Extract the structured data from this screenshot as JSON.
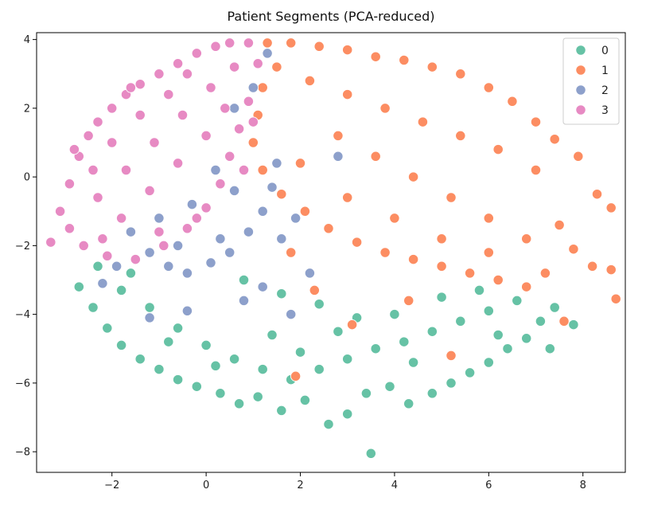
{
  "chart_data": {
    "type": "scatter",
    "title": "Patient Segments (PCA-reduced)",
    "xlabel": "",
    "ylabel": "",
    "xlim": [
      -3.6,
      8.9
    ],
    "ylim": [
      -8.6,
      4.2
    ],
    "xticks": [
      -2,
      0,
      2,
      4,
      6,
      8
    ],
    "yticks": [
      4,
      2,
      0,
      -2,
      -4,
      -6,
      -8
    ],
    "xtick_labels": [
      "−2",
      "0",
      "2",
      "4",
      "6",
      "8"
    ],
    "ytick_labels": [
      "4",
      "2",
      "0",
      "−2",
      "−4",
      "−6",
      "−8"
    ],
    "grid": false,
    "legend_position": "top-right",
    "marker_edge_color": "#ffffff",
    "series": [
      {
        "name": "0",
        "color": "#66c2a5",
        "points": [
          [
            -2.7,
            -3.2
          ],
          [
            -2.4,
            -3.8
          ],
          [
            -2.1,
            -4.4
          ],
          [
            -1.8,
            -4.9
          ],
          [
            -1.4,
            -5.3
          ],
          [
            -1.0,
            -5.6
          ],
          [
            -0.6,
            -5.9
          ],
          [
            -0.2,
            -6.1
          ],
          [
            0.3,
            -6.3
          ],
          [
            0.7,
            -6.6
          ],
          [
            1.1,
            -6.4
          ],
          [
            1.6,
            -6.8
          ],
          [
            2.1,
            -6.5
          ],
          [
            2.6,
            -7.2
          ],
          [
            3.0,
            -6.9
          ],
          [
            3.4,
            -6.3
          ],
          [
            3.5,
            -8.05
          ],
          [
            3.9,
            -6.1
          ],
          [
            4.3,
            -6.6
          ],
          [
            4.8,
            -6.3
          ],
          [
            5.2,
            -6.0
          ],
          [
            5.6,
            -5.7
          ],
          [
            6.0,
            -5.4
          ],
          [
            6.4,
            -5.0
          ],
          [
            6.8,
            -4.7
          ],
          [
            7.1,
            -4.2
          ],
          [
            7.4,
            -3.8
          ],
          [
            7.8,
            -4.3
          ],
          [
            7.3,
            -5.0
          ],
          [
            -1.8,
            -3.3
          ],
          [
            -1.2,
            -3.8
          ],
          [
            -0.6,
            -4.4
          ],
          [
            0.0,
            -4.9
          ],
          [
            0.6,
            -5.3
          ],
          [
            1.2,
            -5.6
          ],
          [
            1.8,
            -5.9
          ],
          [
            2.4,
            -5.6
          ],
          [
            3.0,
            -5.3
          ],
          [
            3.6,
            -5.0
          ],
          [
            4.2,
            -4.8
          ],
          [
            4.8,
            -4.5
          ],
          [
            5.4,
            -4.2
          ],
          [
            6.0,
            -3.9
          ],
          [
            6.6,
            -3.6
          ],
          [
            -2.3,
            -2.6
          ],
          [
            -1.6,
            -2.8
          ],
          [
            0.8,
            -3.0
          ],
          [
            1.6,
            -3.4
          ],
          [
            2.4,
            -3.7
          ],
          [
            3.2,
            -4.1
          ],
          [
            4.0,
            -4.0
          ],
          [
            5.0,
            -3.5
          ],
          [
            5.8,
            -3.3
          ],
          [
            0.2,
            -5.5
          ],
          [
            1.4,
            -4.6
          ],
          [
            2.8,
            -4.5
          ],
          [
            4.4,
            -5.4
          ],
          [
            -0.8,
            -4.8
          ],
          [
            6.2,
            -4.6
          ],
          [
            2.0,
            -5.1
          ]
        ]
      },
      {
        "name": "1",
        "color": "#fc8d62",
        "points": [
          [
            1.3,
            3.9
          ],
          [
            1.8,
            3.9
          ],
          [
            2.4,
            3.8
          ],
          [
            3.0,
            3.7
          ],
          [
            3.6,
            3.5
          ],
          [
            4.2,
            3.4
          ],
          [
            4.8,
            3.2
          ],
          [
            5.4,
            3.0
          ],
          [
            6.0,
            2.6
          ],
          [
            6.5,
            2.2
          ],
          [
            7.0,
            1.6
          ],
          [
            7.4,
            1.1
          ],
          [
            7.9,
            0.6
          ],
          [
            8.3,
            -0.5
          ],
          [
            8.6,
            -0.9
          ],
          [
            8.7,
            -3.55
          ],
          [
            8.6,
            -2.7
          ],
          [
            8.2,
            -2.6
          ],
          [
            7.8,
            -2.1
          ],
          [
            7.5,
            -1.4
          ],
          [
            7.2,
            -2.8
          ],
          [
            6.8,
            -3.2
          ],
          [
            6.2,
            -3.0
          ],
          [
            5.6,
            -2.8
          ],
          [
            5.0,
            -2.6
          ],
          [
            4.4,
            -2.4
          ],
          [
            3.8,
            -2.2
          ],
          [
            3.2,
            -1.9
          ],
          [
            2.6,
            -1.5
          ],
          [
            2.1,
            -1.0
          ],
          [
            1.6,
            -0.5
          ],
          [
            1.2,
            0.2
          ],
          [
            1.0,
            1.0
          ],
          [
            1.1,
            1.8
          ],
          [
            1.2,
            2.6
          ],
          [
            1.5,
            3.2
          ],
          [
            2.2,
            2.8
          ],
          [
            3.0,
            2.4
          ],
          [
            3.8,
            2.0
          ],
          [
            4.6,
            1.6
          ],
          [
            5.4,
            1.2
          ],
          [
            6.2,
            0.8
          ],
          [
            7.0,
            0.2
          ],
          [
            2.8,
            1.2
          ],
          [
            3.6,
            0.6
          ],
          [
            4.4,
            0.0
          ],
          [
            5.2,
            -0.6
          ],
          [
            6.0,
            -1.2
          ],
          [
            6.8,
            -1.8
          ],
          [
            2.0,
            0.4
          ],
          [
            3.0,
            -0.6
          ],
          [
            4.0,
            -1.2
          ],
          [
            5.0,
            -1.8
          ],
          [
            6.0,
            -2.2
          ],
          [
            1.8,
            -2.2
          ],
          [
            2.3,
            -3.3
          ],
          [
            3.1,
            -4.3
          ],
          [
            1.9,
            -5.8
          ],
          [
            5.2,
            -5.2
          ],
          [
            4.3,
            -3.6
          ],
          [
            7.6,
            -4.2
          ]
        ]
      },
      {
        "name": "2",
        "color": "#8da0cb",
        "points": [
          [
            -1.6,
            -1.6
          ],
          [
            -1.2,
            -2.2
          ],
          [
            -0.8,
            -2.6
          ],
          [
            -0.4,
            -2.8
          ],
          [
            0.1,
            -2.5
          ],
          [
            0.5,
            -2.2
          ],
          [
            0.9,
            -1.6
          ],
          [
            1.2,
            -1.0
          ],
          [
            1.4,
            -0.3
          ],
          [
            1.5,
            0.4
          ],
          [
            0.6,
            -0.4
          ],
          [
            0.2,
            0.2
          ],
          [
            -0.3,
            -0.8
          ],
          [
            -1.0,
            -1.2
          ],
          [
            1.3,
            3.6
          ],
          [
            1.0,
            2.6
          ],
          [
            0.6,
            2.0
          ],
          [
            1.6,
            -1.8
          ],
          [
            1.2,
            -3.2
          ],
          [
            0.8,
            -3.6
          ],
          [
            -0.4,
            -3.9
          ],
          [
            -1.2,
            -4.1
          ],
          [
            -2.2,
            -3.1
          ],
          [
            1.8,
            -4.0
          ],
          [
            2.2,
            -2.8
          ],
          [
            2.8,
            0.6
          ],
          [
            0.3,
            -1.8
          ],
          [
            -0.6,
            -2.0
          ],
          [
            1.9,
            -1.2
          ],
          [
            -1.9,
            -2.6
          ]
        ]
      },
      {
        "name": "3",
        "color": "#e78ac3",
        "points": [
          [
            -3.3,
            -1.9
          ],
          [
            -3.1,
            -1.0
          ],
          [
            -2.9,
            -0.2
          ],
          [
            -2.7,
            0.6
          ],
          [
            -2.5,
            1.2
          ],
          [
            -2.3,
            1.6
          ],
          [
            -2.0,
            2.0
          ],
          [
            -1.7,
            2.4
          ],
          [
            -1.4,
            2.7
          ],
          [
            -1.0,
            3.0
          ],
          [
            -0.6,
            3.3
          ],
          [
            -0.2,
            3.6
          ],
          [
            0.2,
            3.8
          ],
          [
            0.5,
            3.9
          ],
          [
            0.9,
            3.9
          ],
          [
            1.1,
            3.3
          ],
          [
            0.9,
            2.2
          ],
          [
            0.7,
            1.4
          ],
          [
            0.5,
            0.6
          ],
          [
            0.3,
            -0.2
          ],
          [
            0.0,
            -0.9
          ],
          [
            -0.4,
            -1.5
          ],
          [
            -0.9,
            -2.0
          ],
          [
            -1.5,
            -2.4
          ],
          [
            -2.1,
            -2.3
          ],
          [
            -2.6,
            -2.0
          ],
          [
            -2.9,
            -1.5
          ],
          [
            -2.3,
            -0.6
          ],
          [
            -1.7,
            0.2
          ],
          [
            -1.1,
            1.0
          ],
          [
            -0.5,
            1.8
          ],
          [
            0.1,
            2.6
          ],
          [
            -2.0,
            1.0
          ],
          [
            -1.4,
            1.8
          ],
          [
            -0.8,
            2.4
          ],
          [
            -1.2,
            -0.4
          ],
          [
            -0.6,
            0.4
          ],
          [
            0.0,
            1.2
          ],
          [
            -1.8,
            -1.2
          ],
          [
            -2.4,
            0.2
          ],
          [
            -0.2,
            -1.2
          ],
          [
            0.4,
            2.0
          ],
          [
            -1.0,
            -1.6
          ],
          [
            -2.8,
            0.8
          ],
          [
            -1.6,
            2.6
          ],
          [
            0.8,
            0.2
          ],
          [
            -0.4,
            3.0
          ],
          [
            -2.2,
            -1.8
          ],
          [
            1.0,
            1.6
          ],
          [
            0.6,
            3.2
          ]
        ]
      }
    ]
  }
}
